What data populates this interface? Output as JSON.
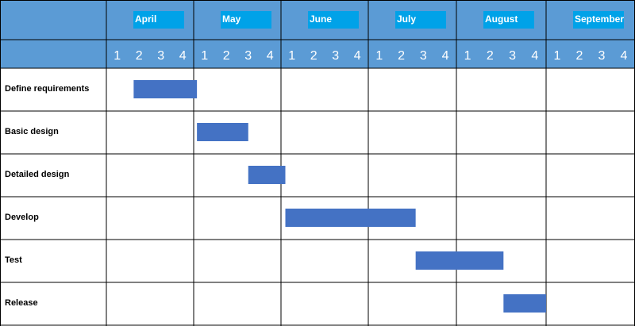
{
  "chart_data": {
    "type": "gantt",
    "months": [
      "April",
      "May",
      "June",
      "July",
      "August",
      "September"
    ],
    "weeks_per_month": [
      "1",
      "2",
      "3",
      "4"
    ],
    "tasks": [
      {
        "label": "Define requirements",
        "start_week": 1.25,
        "end_week": 4.15
      },
      {
        "label": "Basic design",
        "start_week": 4.15,
        "end_week": 6.5
      },
      {
        "label": "Detailed design",
        "start_week": 6.5,
        "end_week": 8.2
      },
      {
        "label": "Develop",
        "start_week": 8.2,
        "end_week": 14.15
      },
      {
        "label": "Test",
        "start_week": 14.15,
        "end_week": 18.1
      },
      {
        "label": "Release",
        "start_week": 18.1,
        "end_week": 20.0
      }
    ],
    "colors": {
      "header_band": "#5B9BD5",
      "month_label_box": "#00A2E8",
      "bar": "#4472C4",
      "grid": "#000000"
    }
  }
}
